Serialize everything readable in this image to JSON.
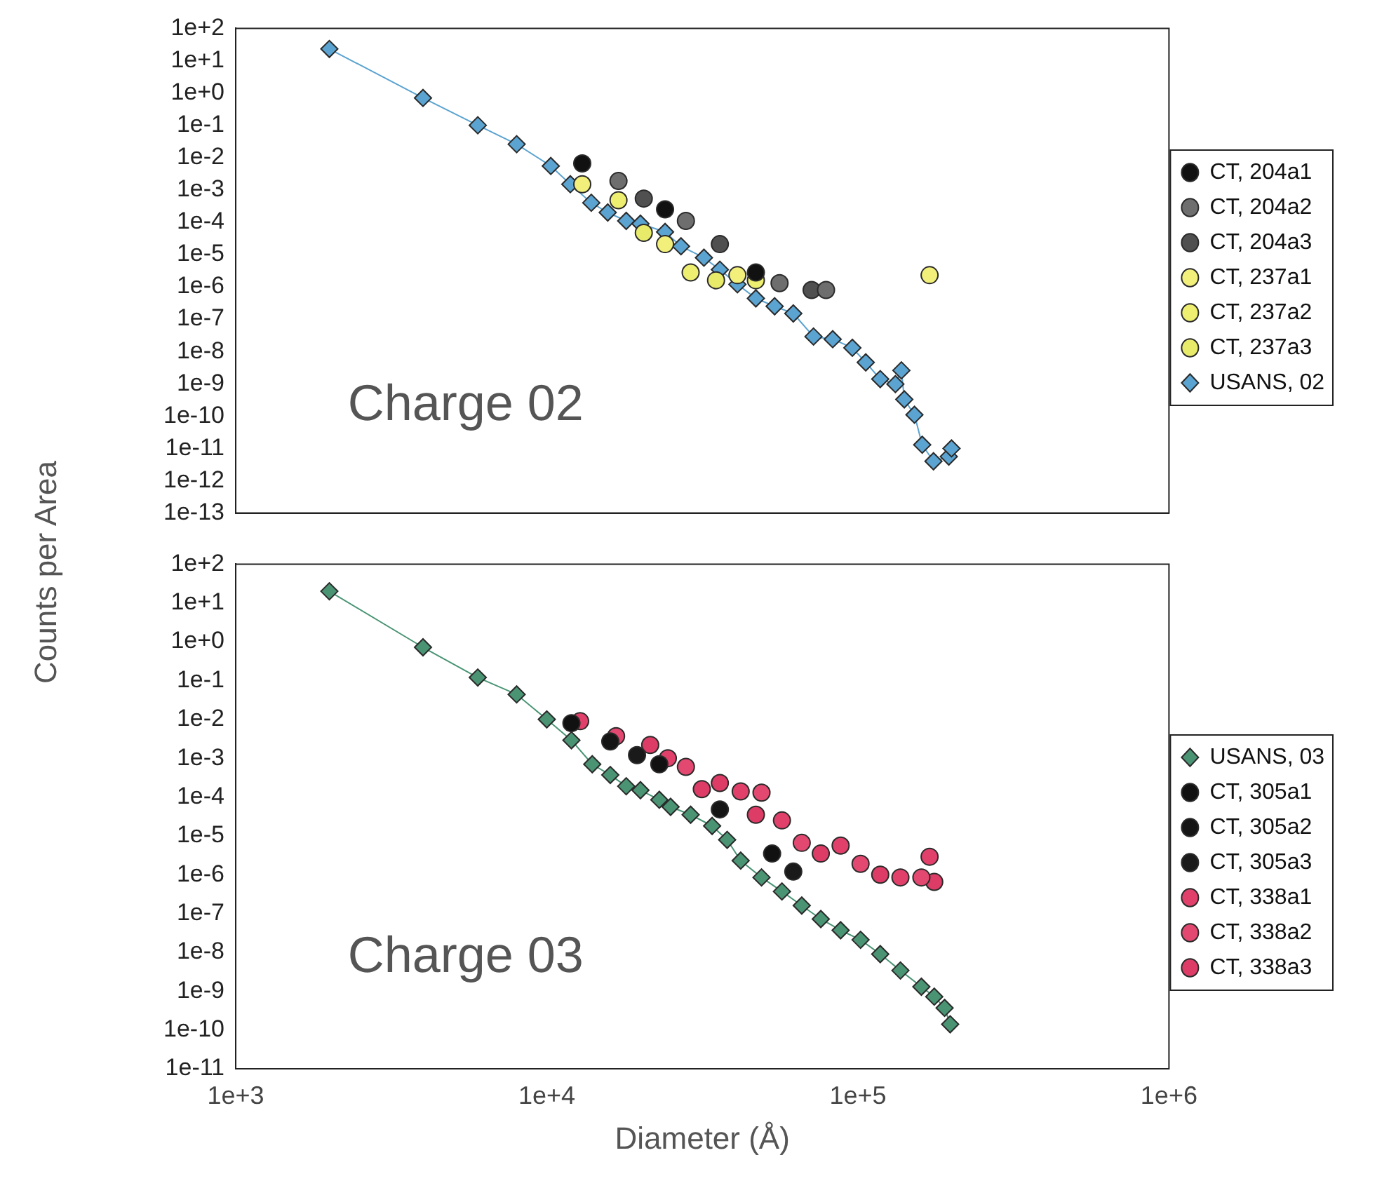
{
  "chart_data": [
    {
      "type": "scatter",
      "ylabel": "Counts per Area",
      "annotations": [
        "Charge 02"
      ],
      "log": "xy",
      "tick_labels": "y",
      "legend": "right",
      "xlim": [
        1000,
        1000000
      ],
      "xticks": [
        {
          "value": 1000,
          "label": null
        },
        {
          "value": 10000,
          "label": null
        },
        {
          "value": 100000,
          "label": null
        },
        {
          "value": 1000000,
          "label": null
        }
      ],
      "ylim": [
        1e-13,
        100
      ],
      "yticks": [
        {
          "value": 100,
          "label": "1e+2"
        },
        {
          "value": 10,
          "label": "1e+1"
        },
        {
          "value": 1,
          "label": "1e+0"
        },
        {
          "value": 0.1,
          "label": "1e-1"
        },
        {
          "value": 0.01,
          "label": "1e-2"
        },
        {
          "value": 0.001,
          "label": "1e-3"
        },
        {
          "value": 0.0001,
          "label": "1e-4"
        },
        {
          "value": 1e-05,
          "label": "1e-5"
        },
        {
          "value": 1e-06,
          "label": "1e-6"
        },
        {
          "value": 1e-07,
          "label": "1e-7"
        },
        {
          "value": 1e-08,
          "label": "1e-8"
        },
        {
          "value": 1e-09,
          "label": "1e-9"
        },
        {
          "value": 1e-10,
          "label": "1e-10"
        },
        {
          "value": 1e-11,
          "label": "1e-11"
        },
        {
          "value": 1e-12,
          "label": "1e-12"
        },
        {
          "value": 1e-13,
          "label": "1e-13"
        }
      ],
      "series": [
        {
          "name": "CT, 204a1",
          "type": "scatter",
          "marker": "circle",
          "color": "#111111",
          "x": [
            13000,
            24000,
            47000
          ],
          "values": [
            0.0066,
            0.00025,
            2.8e-06
          ]
        },
        {
          "name": "CT, 204a2",
          "type": "scatter",
          "marker": "circle",
          "color": "#6e6e6e",
          "x": [
            17000,
            28000,
            56000,
            79000
          ],
          "values": [
            0.0019,
            0.00011,
            1.3e-06,
            8e-07
          ]
        },
        {
          "name": "CT, 204a3",
          "type": "scatter",
          "marker": "circle",
          "color": "#505050",
          "x": [
            20500,
            36000,
            71000
          ],
          "values": [
            0.00054,
            2.1e-05,
            8e-07
          ]
        },
        {
          "name": "CT, 237a1",
          "type": "scatter",
          "marker": "circle",
          "color": "#f2f07a",
          "x": [
            13000,
            24000,
            41000,
            170000
          ],
          "values": [
            0.0015,
            2.1e-05,
            2.3e-06,
            2.3e-06
          ]
        },
        {
          "name": "CT, 237a2",
          "type": "scatter",
          "marker": "circle",
          "color": "#eeee70",
          "x": [
            17000,
            29000,
            47000
          ],
          "values": [
            0.00048,
            2.8e-06,
            1.6e-06
          ]
        },
        {
          "name": "CT, 237a3",
          "type": "scatter",
          "marker": "circle",
          "color": "#e8ea6a",
          "x": [
            20500,
            35000
          ],
          "values": [
            4.7e-05,
            1.6e-06
          ]
        },
        {
          "name": "USANS, 02",
          "type": "line",
          "marker": "diamond",
          "line_style": "solid",
          "color": "#5ba3d0",
          "x": [
            2000,
            4000,
            6000,
            8000,
            10300,
            11900,
            13900,
            15700,
            18000,
            20000,
            24000,
            27000,
            32000,
            36000,
            41000,
            47000,
            54000,
            62000,
            72000,
            83000,
            96000,
            106000,
            118000,
            132000,
            138000,
            141000,
            152000,
            161000,
            175000,
            196000,
            200000
          ],
          "values": [
            23,
            0.7,
            0.1,
            0.026,
            0.0055,
            0.0015,
            0.0004,
            0.0002,
            0.00011,
            9e-05,
            5e-05,
            1.8e-05,
            8e-06,
            3.4e-06,
            1.2e-06,
            4.4e-07,
            2.5e-07,
            1.5e-07,
            2.9e-08,
            2.4e-08,
            1.3e-08,
            4.6e-09,
            1.4e-09,
            9.8e-10,
            2.6e-09,
            3.3e-10,
            1.1e-10,
            1.3e-11,
            4e-12,
            5.6e-12,
            1e-11
          ]
        }
      ]
    },
    {
      "type": "scatter",
      "xlabel": "Diameter (Å)",
      "annotations": [
        "Charge 03"
      ],
      "log": "xy",
      "legend": "right",
      "xlim": [
        1000,
        1000000
      ],
      "xticks": [
        {
          "value": 1000,
          "label": "1e+3"
        },
        {
          "value": 10000,
          "label": "1e+4"
        },
        {
          "value": 100000,
          "label": "1e+5"
        },
        {
          "value": 1000000,
          "label": "1e+6"
        }
      ],
      "ylim": [
        1e-11,
        100
      ],
      "yticks": [
        {
          "value": 100,
          "label": "1e+2"
        },
        {
          "value": 10,
          "label": "1e+1"
        },
        {
          "value": 1,
          "label": "1e+0"
        },
        {
          "value": 0.1,
          "label": "1e-1"
        },
        {
          "value": 0.01,
          "label": "1e-2"
        },
        {
          "value": 0.001,
          "label": "1e-3"
        },
        {
          "value": 0.0001,
          "label": "1e-4"
        },
        {
          "value": 1e-05,
          "label": "1e-5"
        },
        {
          "value": 1e-06,
          "label": "1e-6"
        },
        {
          "value": 1e-07,
          "label": "1e-7"
        },
        {
          "value": 1e-08,
          "label": "1e-8"
        },
        {
          "value": 1e-09,
          "label": "1e-9"
        },
        {
          "value": 1e-10,
          "label": "1e-10"
        },
        {
          "value": 1e-11,
          "label": "1e-11"
        }
      ],
      "series": [
        {
          "name": "USANS, 03",
          "type": "line",
          "marker": "diamond",
          "line_style": "solid",
          "color": "#4a9474",
          "x": [
            2000,
            4000,
            6000,
            8000,
            10000,
            12000,
            14000,
            16000,
            18000,
            20000,
            23000,
            25000,
            29000,
            34000,
            38000,
            42000,
            49000,
            57000,
            66000,
            76000,
            88000,
            102000,
            118000,
            137000,
            160000,
            176000,
            190000,
            198000
          ],
          "values": [
            20,
            0.72,
            0.12,
            0.044,
            0.01,
            0.0029,
            0.0007,
            0.00037,
            0.00019,
            0.00015,
            8.5e-05,
            5.6e-05,
            3.5e-05,
            1.8e-05,
            7.9e-06,
            2.3e-06,
            8.5e-07,
            3.7e-07,
            1.6e-07,
            7.2e-08,
            3.7e-08,
            2.1e-08,
            9e-09,
            3.4e-09,
            1.3e-09,
            7.2e-10,
            3.7e-10,
            1.4e-10
          ]
        },
        {
          "name": "CT, 305a1",
          "type": "scatter",
          "marker": "circle",
          "color": "#111111",
          "x": [
            12000,
            23000,
            53000
          ],
          "values": [
            0.008,
            0.0007,
            3.5e-06
          ]
        },
        {
          "name": "CT, 305a2",
          "type": "scatter",
          "marker": "circle",
          "color": "#151515",
          "x": [
            16000,
            36000
          ],
          "values": [
            0.0027,
            4.8e-05
          ]
        },
        {
          "name": "CT, 305a3",
          "type": "scatter",
          "marker": "circle",
          "color": "#1a1a1a",
          "x": [
            19500,
            62000
          ],
          "values": [
            0.0012,
            1.2e-06
          ]
        },
        {
          "name": "CT, 338a1",
          "type": "scatter",
          "marker": "circle",
          "color": "#e0406a",
          "x": [
            12800,
            24500,
            42000,
            57000,
            88000,
            137000,
            170000
          ],
          "values": [
            0.009,
            0.001,
            0.00014,
            2.5e-05,
            5.6e-06,
            8.5e-07,
            2.9e-06
          ]
        },
        {
          "name": "CT, 338a2",
          "type": "scatter",
          "marker": "circle",
          "color": "#e34870",
          "x": [
            16700,
            28000,
            49000,
            66000,
            102000,
            160000
          ],
          "values": [
            0.0037,
            0.0006,
            0.00013,
            6.6e-06,
            1.9e-06,
            8.5e-07
          ]
        },
        {
          "name": "CT, 338a3",
          "type": "scatter",
          "marker": "circle",
          "color": "#dc3c66",
          "x": [
            21500,
            31500,
            36000,
            47000,
            76000,
            118000,
            176000
          ],
          "values": [
            0.0022,
            0.00016,
            0.00023,
            3.5e-05,
            3.5e-06,
            1e-06,
            6.5e-07
          ]
        }
      ]
    }
  ]
}
